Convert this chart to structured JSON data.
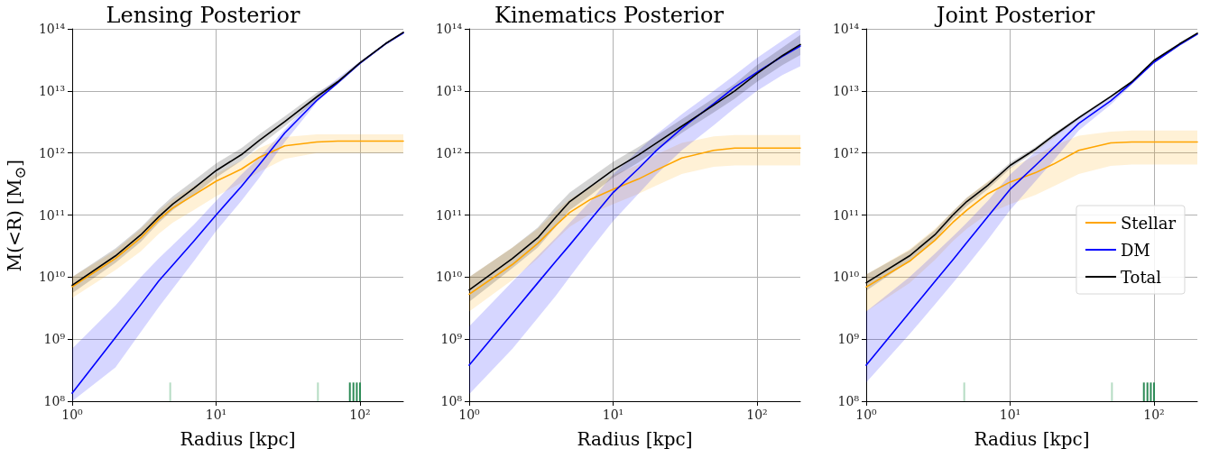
{
  "chart_data": [
    {
      "type": "line",
      "title": "Lensing Posterior",
      "xlabel": "Radius [kpc]",
      "ylabel": "M(<R) [M$_{⊙}$]",
      "log": "xy",
      "grid": true,
      "legend": false,
      "marker": "none",
      "line_style": "solid",
      "xlim": [
        1,
        200
      ],
      "ylim": [
        100000000.0,
        100000000000000.0
      ],
      "xticks": [
        {
          "value": 1,
          "label": "10⁰"
        },
        {
          "value": 10,
          "label": "10¹"
        },
        {
          "value": 100,
          "label": "10²"
        }
      ],
      "yticks": [
        {
          "value": 100000000.0,
          "label": "10⁸"
        },
        {
          "value": 1000000000.0,
          "label": "10⁹"
        },
        {
          "value": 10000000000.0,
          "label": "10¹⁰"
        },
        {
          "value": 100000000000.0,
          "label": "10¹¹"
        },
        {
          "value": 1000000000000.0,
          "label": "10¹²"
        },
        {
          "value": 10000000000000.0,
          "label": "10¹³"
        },
        {
          "value": 100000000000000.0,
          "label": "10¹⁴"
        }
      ],
      "x": [
        1,
        2,
        3,
        4,
        5,
        7,
        10,
        15,
        20,
        30,
        50,
        70,
        100,
        150,
        200
      ],
      "series": [
        {
          "color": "#ffa500",
          "values": [
            7000000000.0,
            20000000000.0,
            43000000000.0,
            85000000000.0,
            130000000000.0,
            210000000000.0,
            350000000000.0,
            550000000000.0,
            850000000000.0,
            1300000000000.0,
            1500000000000.0,
            1550000000000.0,
            1550000000000.0,
            1550000000000.0,
            1550000000000.0
          ],
          "lower": [
            4600000000.0,
            13000000000.0,
            26000000000.0,
            50000000000.0,
            75000000000.0,
            120000000000.0,
            200000000000.0,
            330000000000.0,
            500000000000.0,
            800000000000.0,
            1000000000000.0,
            1000000000000.0,
            1000000000000.0,
            1000000000000.0,
            1000000000000.0
          ],
          "upper": [
            10000000000.0,
            27000000000.0,
            60000000000.0,
            115000000000.0,
            180000000000.0,
            290000000000.0,
            460000000000.0,
            750000000000.0,
            1200000000000.0,
            1800000000000.0,
            2000000000000.0,
            2000000000000.0,
            2000000000000.0,
            2000000000000.0,
            2000000000000.0
          ]
        },
        {
          "color": "#0000ff",
          "values": [
            135000000.0,
            1070000000.0,
            3600000000.0,
            8700000000.0,
            15600000000.0,
            38000000000.0,
            100000000000.0,
            290000000000.0,
            650000000000.0,
            2100000000000.0,
            7000000000000.0,
            13500000000000.0,
            28000000000000.0,
            57000000000000.0,
            86000000000000.0
          ],
          "lower": [
            100000000.0,
            350000000.0,
            1300000000.0,
            3300000000.0,
            6500000000.0,
            18000000000.0,
            55000000000.0,
            170000000000.0,
            400000000000.0,
            1500000000000.0,
            6500000000000.0,
            13000000000000.0,
            27000000000000.0,
            55000000000000.0,
            83000000000000.0
          ],
          "upper": [
            700000000.0,
            3500000000.0,
            10000000000.0,
            20000000000.0,
            33000000000.0,
            70000000000.0,
            170000000000.0,
            450000000000.0,
            850000000000.0,
            2400000000000.0,
            8500000000000.0,
            16000000000000.0,
            30000000000000.0,
            59000000000000.0,
            89000000000000.0
          ]
        },
        {
          "color": "#000000",
          "values": [
            7400000000.0,
            22000000000.0,
            48000000000.0,
            94000000000.0,
            150000000000.0,
            270000000000.0,
            520000000000.0,
            940000000000.0,
            1600000000000.0,
            3200000000000.0,
            8000000000000.0,
            14000000000000.0,
            28500000000000.0,
            57500000000000.0,
            88000000000000.0
          ],
          "lower": [
            5500000000.0,
            17000000000.0,
            37000000000.0,
            75000000000.0,
            120000000000.0,
            210000000000.0,
            400000000000.0,
            750000000000.0,
            1300000000000.0,
            2700000000000.0,
            7000000000000.0,
            13000000000000.0,
            27000000000000.0,
            55000000000000.0,
            85000000000000.0
          ],
          "upper": [
            10000000000.0,
            29000000000.0,
            63000000000.0,
            125000000000.0,
            200000000000.0,
            360000000000.0,
            680000000000.0,
            1200000000000.0,
            2000000000000.0,
            3900000000000.0,
            9300000000000.0,
            15000000000000.0,
            29000000000000.0,
            59000000000000.0,
            91000000000000.0
          ]
        },
        {
          "type": "bar",
          "x": [
            4.8,
            51,
            85,
            90,
            95,
            100
          ],
          "base": [
            100000000.0,
            100000000.0,
            100000000.0,
            100000000.0,
            100000000.0,
            100000000.0
          ],
          "values": [
            100000000.0,
            100000000.0,
            100000000.0,
            100000000.0,
            100000000.0,
            100000000.0
          ],
          "colors": [
            "#b5dcc3",
            "#b5dcc3",
            "#2e8b57",
            "#2e8b57",
            "#2e8b57",
            "#2e8b57"
          ]
        }
      ]
    },
    {
      "type": "line",
      "title": "Kinematics Posterior",
      "xlabel": "Radius [kpc]",
      "log": "xy",
      "grid": true,
      "legend": false,
      "marker": "none",
      "line_style": "solid",
      "xlim": [
        1,
        200
      ],
      "ylim": [
        100000000.0,
        100000000000000.0
      ],
      "xticks": [
        {
          "value": 1,
          "label": "10⁰"
        },
        {
          "value": 10,
          "label": "10¹"
        },
        {
          "value": 100,
          "label": "10²"
        }
      ],
      "yticks": [
        {
          "value": 100000000.0,
          "label": "10⁸"
        },
        {
          "value": 1000000000.0,
          "label": "10⁹"
        },
        {
          "value": 10000000000.0,
          "label": "10¹⁰"
        },
        {
          "value": 100000000000.0,
          "label": "10¹¹"
        },
        {
          "value": 1000000000000.0,
          "label": "10¹²"
        },
        {
          "value": 10000000000000.0,
          "label": "10¹³"
        },
        {
          "value": 100000000000000.0,
          "label": "10¹⁴"
        }
      ],
      "x": [
        1,
        2,
        3,
        4,
        5,
        7,
        10,
        15,
        20,
        30,
        50,
        70,
        100,
        150,
        200
      ],
      "series": [
        {
          "color": "#ffa500",
          "values": [
            5300000000.0,
            16000000000.0,
            35000000000.0,
            68000000000.0,
            110000000000.0,
            180000000000.0,
            260000000000.0,
            380000000000.0,
            530000000000.0,
            830000000000.0,
            1100000000000.0,
            1200000000000.0,
            1200000000000.0,
            1200000000000.0,
            1200000000000.0
          ],
          "lower": [
            2800000000.0,
            9000000000.0,
            20000000000.0,
            40000000000.0,
            65000000000.0,
            105000000000.0,
            150000000000.0,
            220000000000.0,
            300000000000.0,
            460000000000.0,
            600000000000.0,
            630000000000.0,
            630000000000.0,
            630000000000.0,
            630000000000.0
          ],
          "upper": [
            10000000000.0,
            30000000000.0,
            60000000000.0,
            115000000000.0,
            180000000000.0,
            290000000000.0,
            440000000000.0,
            650000000000.0,
            950000000000.0,
            1450000000000.0,
            1850000000000.0,
            1950000000000.0,
            1950000000000.0,
            1950000000000.0,
            1950000000000.0
          ]
        },
        {
          "color": "#0000ff",
          "values": [
            380000000.0,
            2600000000.0,
            8100000000.0,
            18000000000.0,
            33000000000.0,
            85000000000.0,
            230000000000.0,
            560000000000.0,
            1100000000000.0,
            2500000000000.0,
            6200000000000.0,
            11500000000000.0,
            20000000000000.0,
            36000000000000.0,
            53000000000000.0
          ],
          "lower": [
            130000000.0,
            700000000.0,
            2200000000.0,
            5000000000.0,
            10000000000.0,
            28000000000.0,
            80000000000.0,
            220000000000.0,
            450000000000.0,
            1100000000000.0,
            2800000000000.0,
            5300000000000.0,
            10000000000000.0,
            18000000000000.0,
            25000000000000.0
          ],
          "upper": [
            1600000000.0,
            8500000000.0,
            22000000000.0,
            43000000000.0,
            75000000000.0,
            170000000000.0,
            450000000000.0,
            1100000000000.0,
            2000000000000.0,
            4200000000000.0,
            10000000000000.0,
            18000000000000.0,
            34000000000000.0,
            65000000000000.0,
            100000000000000.0
          ]
        },
        {
          "color": "#000000",
          "values": [
            6200000000.0,
            20000000000.0,
            43000000000.0,
            93000000000.0,
            165000000000.0,
            290000000000.0,
            530000000000.0,
            930000000000.0,
            1450000000000.0,
            2700000000000.0,
            5900000000000.0,
            10000000000000.0,
            19000000000000.0,
            37000000000000.0,
            56000000000000.0
          ],
          "lower": [
            4000000000.0,
            14000000000.0,
            30000000000.0,
            65000000000.0,
            120000000000.0,
            210000000000.0,
            400000000000.0,
            700000000000.0,
            1100000000000.0,
            2100000000000.0,
            4500000000000.0,
            7500000000000.0,
            14000000000000.0,
            26000000000000.0,
            38000000000000.0
          ],
          "upper": [
            10000000000.0,
            30000000000.0,
            63000000000.0,
            135000000000.0,
            230000000000.0,
            400000000000.0,
            720000000000.0,
            1250000000000.0,
            1900000000000.0,
            3500000000000.0,
            7600000000000.0,
            13000000000000.0,
            26000000000000.0,
            50000000000000.0,
            80000000000000.0
          ]
        }
      ]
    },
    {
      "type": "line",
      "title": "Joint Posterior",
      "xlabel": "Radius [kpc]",
      "log": "xy",
      "grid": true,
      "legend": "center right",
      "marker": "none",
      "line_style": "solid",
      "xlim": [
        1,
        200
      ],
      "ylim": [
        100000000.0,
        100000000000000.0
      ],
      "xticks": [
        {
          "value": 1,
          "label": "10⁰"
        },
        {
          "value": 10,
          "label": "10¹"
        },
        {
          "value": 100,
          "label": "10²"
        }
      ],
      "yticks": [
        {
          "value": 100000000.0,
          "label": "10⁸"
        },
        {
          "value": 1000000000.0,
          "label": "10⁹"
        },
        {
          "value": 10000000000.0,
          "label": "10¹⁰"
        },
        {
          "value": 100000000000.0,
          "label": "10¹¹"
        },
        {
          "value": 1000000000000.0,
          "label": "10¹²"
        },
        {
          "value": 10000000000000.0,
          "label": "10¹³"
        },
        {
          "value": 100000000000000.0,
          "label": "10¹⁴"
        }
      ],
      "x": [
        1,
        2,
        3,
        4,
        5,
        7,
        10,
        15,
        20,
        30,
        50,
        70,
        100,
        150,
        200
      ],
      "series": [
        {
          "name": "Stellar",
          "color": "#ffa500",
          "values": [
            6900000000.0,
            18000000000.0,
            39000000000.0,
            76000000000.0,
            120000000000.0,
            220000000000.0,
            340000000000.0,
            480000000000.0,
            660000000000.0,
            1100000000000.0,
            1450000000000.0,
            1500000000000.0,
            1500000000000.0,
            1500000000000.0,
            1500000000000.0
          ],
          "lower": [
            2800000000.0,
            8000000000.0,
            19000000000.0,
            38000000000.0,
            60000000000.0,
            105000000000.0,
            150000000000.0,
            210000000000.0,
            290000000000.0,
            460000000000.0,
            620000000000.0,
            650000000000.0,
            650000000000.0,
            650000000000.0,
            650000000000.0
          ],
          "upper": [
            11000000000.0,
            28000000000.0,
            60000000000.0,
            115000000000.0,
            190000000000.0,
            350000000000.0,
            580000000000.0,
            900000000000.0,
            1300000000000.0,
            1900000000000.0,
            2200000000000.0,
            2300000000000.0,
            2300000000000.0,
            2300000000000.0,
            2300000000000.0
          ]
        },
        {
          "name": "DM",
          "color": "#0000ff",
          "values": [
            380000000.0,
            2700000000.0,
            8500000000.0,
            19000000000.0,
            36000000000.0,
            94000000000.0,
            260000000000.0,
            630000000000.0,
            1200000000000.0,
            3000000000000.0,
            6900000000000.0,
            13500000000000.0,
            29000000000000.0,
            55000000000000.0,
            82000000000000.0
          ],
          "lower": [
            200000000.0,
            1200000000.0,
            3600000000.0,
            8000000000.0,
            15000000000.0,
            40000000000.0,
            120000000000.0,
            350000000000.0,
            750000000000.0,
            2300000000000.0,
            6000000000000.0,
            12500000000000.0,
            28000000000000.0,
            53000000000000.0,
            80000000000000.0
          ],
          "upper": [
            2800000000.0,
            10000000000.0,
            24000000000.0,
            45000000000.0,
            75000000000.0,
            170000000000.0,
            450000000000.0,
            1050000000000.0,
            1800000000000.0,
            3800000000000.0,
            7800000000000.0,
            14500000000000.0,
            30000000000000.0,
            57000000000000.0,
            84000000000000.0
          ]
        },
        {
          "name": "Total",
          "color": "#000000",
          "values": [
            8100000000.0,
            22000000000.0,
            48000000000.0,
            100000000000.0,
            165000000000.0,
            300000000000.0,
            630000000000.0,
            1150000000000.0,
            1900000000000.0,
            3700000000000.0,
            8100000000000.0,
            14000000000000.0,
            31000000000000.0,
            57000000000000.0,
            85000000000000.0
          ],
          "lower": [
            6000000000.0,
            18000000000.0,
            40000000000.0,
            85000000000.0,
            140000000000.0,
            260000000000.0,
            560000000000.0,
            1050000000000.0,
            1750000000000.0,
            3500000000000.0,
            7800000000000.0,
            13500000000000.0,
            30000000000000.0,
            55000000000000.0,
            82000000000000.0
          ],
          "upper": [
            11000000000.0,
            27000000000.0,
            57000000000.0,
            115000000000.0,
            190000000000.0,
            340000000000.0,
            700000000000.0,
            1250000000000.0,
            2050000000000.0,
            3900000000000.0,
            8400000000000.0,
            14500000000000.0,
            32000000000000.0,
            59000000000000.0,
            88000000000000.0
          ]
        },
        {
          "type": "bar",
          "x": [
            4.8,
            51,
            85,
            90,
            95,
            100
          ],
          "base": [
            100000000.0,
            100000000.0,
            100000000.0,
            100000000.0,
            100000000.0,
            100000000.0
          ],
          "values": [
            100000000.0,
            100000000.0,
            100000000.0,
            100000000.0,
            100000000.0,
            100000000.0
          ],
          "colors": [
            "#b5dcc3",
            "#b5dcc3",
            "#2e8b57",
            "#2e8b57",
            "#2e8b57",
            "#2e8b57"
          ]
        }
      ]
    }
  ]
}
